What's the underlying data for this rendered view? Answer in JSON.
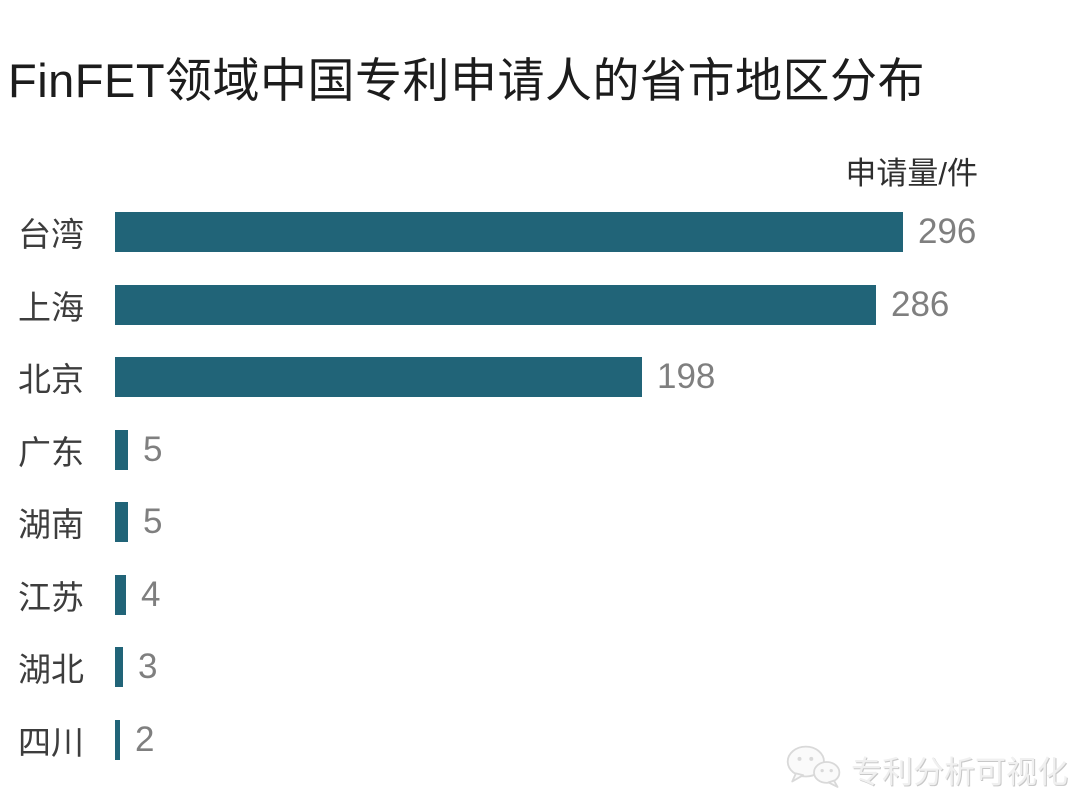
{
  "title": "FinFET领域中国专利申请人的省市地区分布",
  "chart_data": {
    "type": "bar",
    "orientation": "horizontal",
    "title": "FinFET领域中国专利申请人的省市地区分布",
    "value_axis_label": "申请量/件",
    "categories": [
      "台湾",
      "上海",
      "北京",
      "广东",
      "湖南",
      "江苏",
      "湖北",
      "四川"
    ],
    "values": [
      296,
      286,
      198,
      5,
      5,
      4,
      3,
      2
    ],
    "xlim": [
      0,
      300
    ],
    "data_labels": true,
    "gridlines": false,
    "legend": false,
    "bar_color": "#216478",
    "value_label_color": "#7f7f7f",
    "category_label_color": "#3d3d3d"
  },
  "watermark": {
    "text": "专利分析可视化",
    "icon": "wechat-icon"
  }
}
